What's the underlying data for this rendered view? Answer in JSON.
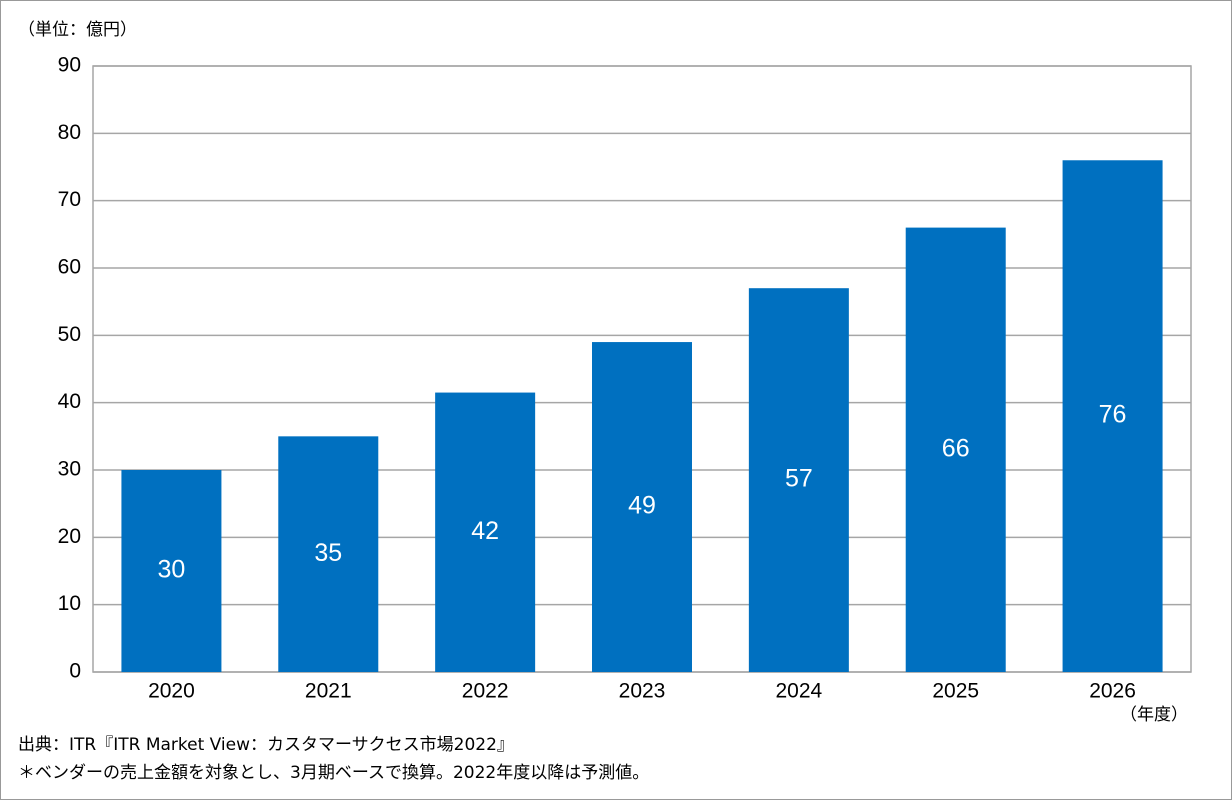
{
  "chart_data": {
    "type": "bar",
    "y_label": "（単位：億円）",
    "x_label": "（年度）",
    "categories": [
      "2020",
      "2021",
      "2022",
      "2023",
      "2024",
      "2025",
      "2026"
    ],
    "values": [
      30,
      35,
      41.5,
      49,
      57,
      66,
      76
    ],
    "value_labels": [
      "30",
      "35",
      "42",
      "49",
      "57",
      "66",
      "76"
    ],
    "color": "#0070c0",
    "ylim": [
      0,
      90
    ],
    "yticks": [
      0,
      10,
      20,
      30,
      40,
      50,
      60,
      70,
      80,
      90
    ],
    "grid": true,
    "notes": [
      "出典：ITR『ITR Market View：カスタマーサクセス市場2022』",
      "＊ベンダーの売上金額を対象とし、3月期ベースで換算。2022年度以降は予測値。"
    ]
  }
}
